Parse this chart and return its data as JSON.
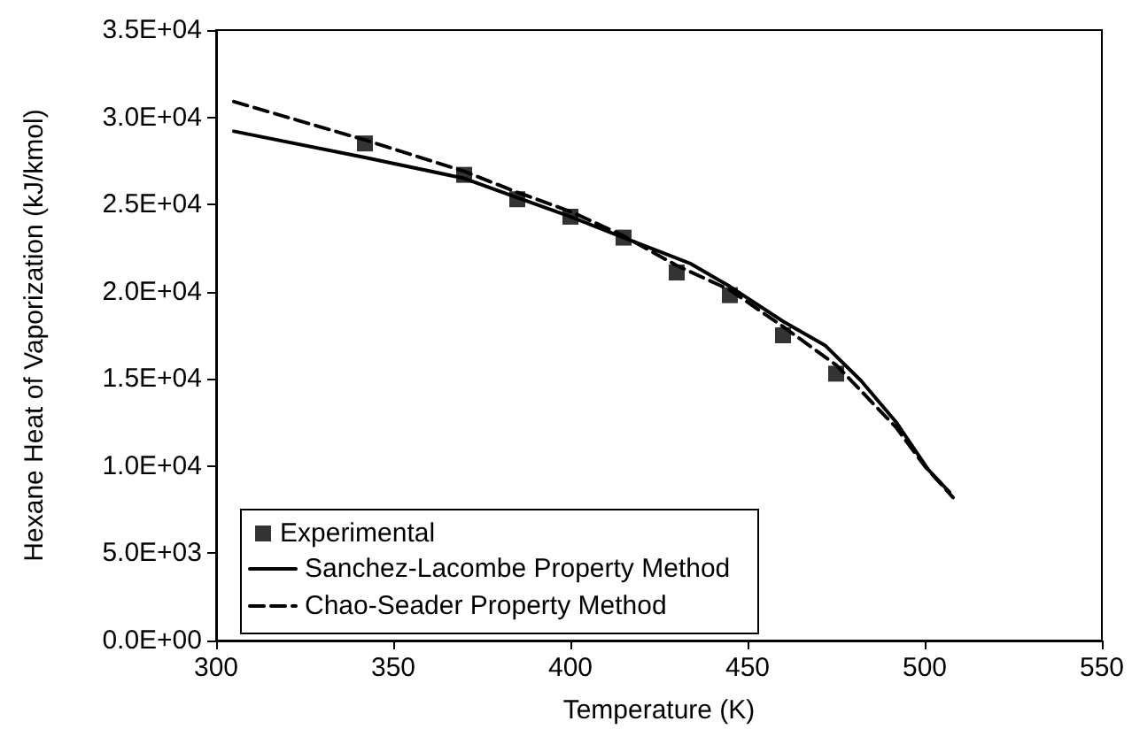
{
  "chart_data": {
    "type": "line",
    "xlabel": "Temperature (K)",
    "ylabel": "Hexane Heat of Vaporization (kJ/kmol)",
    "xlim": [
      300,
      550
    ],
    "xticks": [
      300,
      350,
      400,
      450,
      500,
      550
    ],
    "ylim": [
      0,
      35000
    ],
    "yticks": [
      {
        "value": 0,
        "label": "0.0E+00"
      },
      {
        "value": 5000,
        "label": "5.0E+03"
      },
      {
        "value": 10000,
        "label": "1.0E+04"
      },
      {
        "value": 15000,
        "label": "1.5E+04"
      },
      {
        "value": 20000,
        "label": "2.0E+04"
      },
      {
        "value": 25000,
        "label": "2.5E+04"
      },
      {
        "value": 30000,
        "label": "3.0E+04"
      },
      {
        "value": 35000,
        "label": "3.5E+04"
      }
    ],
    "grid": false,
    "legend": "bottom left",
    "series": [
      {
        "name": "Experimental",
        "type": "scatter",
        "marker": "square",
        "color": "#000000",
        "x": [
          342,
          370,
          385,
          400,
          415,
          430,
          445,
          460,
          475
        ],
        "values": [
          28500,
          26700,
          25300,
          24300,
          23100,
          21100,
          19800,
          17500,
          15300
        ]
      },
      {
        "name": "Sanchez-Lacombe Property Method",
        "marker": "none",
        "line_style": "solid",
        "color": "#000000",
        "x": [
          305,
          342,
          370,
          385,
          400,
          415,
          434,
          445,
          460,
          472,
          482,
          492,
          501,
          507
        ],
        "values": [
          29200,
          27700,
          26500,
          25400,
          24300,
          23100,
          21600,
          20300,
          18300,
          16900,
          14900,
          12500,
          9800,
          8500
        ]
      },
      {
        "name": "Chao-Seader Property Method",
        "marker": "none",
        "line_style": "dashed",
        "color": "#000000",
        "x": [
          305,
          342,
          370,
          385,
          400,
          415,
          430,
          445,
          460,
          475,
          492,
          500,
          508
        ],
        "values": [
          30900,
          28700,
          26900,
          25700,
          24600,
          23200,
          21500,
          20100,
          18000,
          15800,
          12200,
          10000,
          8200
        ]
      }
    ]
  }
}
